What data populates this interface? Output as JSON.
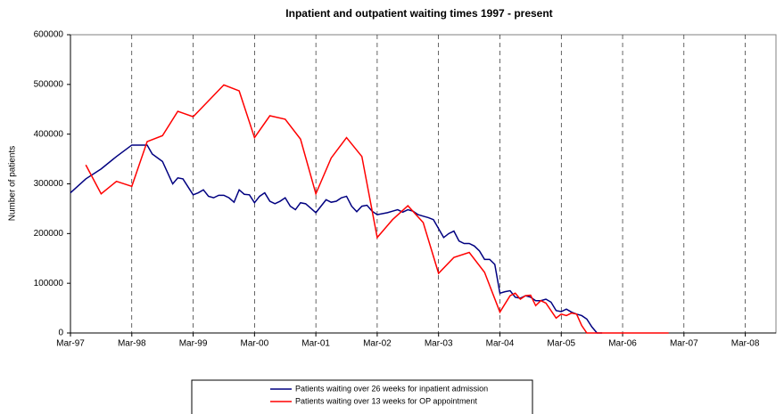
{
  "chart_data": {
    "type": "line",
    "title": "Inpatient and outpatient waiting times 1997 - present",
    "y_label": "Number of patients",
    "xlim": [
      0,
      138
    ],
    "xticks": [
      {
        "value": 0,
        "label": "Mar-97"
      },
      {
        "value": 12,
        "label": "Mar-98"
      },
      {
        "value": 24,
        "label": "Mar-99"
      },
      {
        "value": 36,
        "label": "Mar-00"
      },
      {
        "value": 48,
        "label": "Mar-01"
      },
      {
        "value": 60,
        "label": "Mar-02"
      },
      {
        "value": 72,
        "label": "Mar-03"
      },
      {
        "value": 84,
        "label": "Mar-04"
      },
      {
        "value": 96,
        "label": "Mar-05"
      },
      {
        "value": 108,
        "label": "Mar-06"
      },
      {
        "value": 120,
        "label": "Mar-07"
      },
      {
        "value": 132,
        "label": "Mar-08"
      }
    ],
    "ylim": [
      0,
      600000
    ],
    "yticks": [
      0,
      100000,
      200000,
      300000,
      400000,
      500000,
      600000
    ],
    "xgrid": true,
    "legend": "bottom",
    "series": [
      {
        "name": "Patients waiting over 26 weeks for inpatient admission",
        "color": "#000080",
        "x": [
          0,
          3,
          6,
          9,
          12,
          15,
          16,
          18,
          20,
          21,
          22,
          24,
          25,
          26,
          27,
          28,
          29,
          30,
          31,
          32,
          33,
          34,
          35,
          36,
          37,
          38,
          39,
          40,
          41,
          42,
          43,
          44,
          45,
          46,
          47,
          48,
          49,
          50,
          51,
          52,
          53,
          54,
          55,
          56,
          57,
          58,
          59,
          60,
          62,
          63,
          64,
          65,
          66,
          67,
          68,
          69,
          70,
          71,
          72,
          73,
          74,
          75,
          76,
          77,
          78,
          79,
          80,
          81,
          82,
          83,
          84,
          85,
          86,
          87,
          88,
          89,
          90,
          91,
          92,
          93,
          94,
          95,
          96,
          97,
          98,
          99,
          100,
          101,
          102,
          103,
          104
        ],
        "values": [
          282000,
          310000,
          330000,
          355000,
          378000,
          378000,
          360000,
          345000,
          300000,
          312000,
          310000,
          278000,
          282000,
          288000,
          275000,
          272000,
          277000,
          277000,
          272000,
          263000,
          288000,
          279000,
          278000,
          262000,
          275000,
          282000,
          265000,
          260000,
          265000,
          272000,
          255000,
          248000,
          262000,
          260000,
          251000,
          242000,
          255000,
          268000,
          263000,
          265000,
          272000,
          275000,
          255000,
          244000,
          255000,
          257000,
          245000,
          238000,
          242000,
          245000,
          248000,
          243000,
          248000,
          245000,
          238000,
          235000,
          232000,
          228000,
          210000,
          192000,
          200000,
          205000,
          185000,
          180000,
          180000,
          175000,
          165000,
          148000,
          148000,
          138000,
          80000,
          83000,
          85000,
          72000,
          70000,
          75000,
          72000,
          65000,
          65000,
          68000,
          62000,
          45000,
          43000,
          48000,
          42000,
          38000,
          35000,
          28000,
          12000,
          0,
          0
        ]
      },
      {
        "name": "Patients waiting over 13 weeks for OP appointment",
        "color": "#ff0000",
        "x": [
          3,
          6,
          9,
          12,
          15,
          18,
          21,
          24,
          27,
          30,
          33,
          36,
          39,
          42,
          45,
          48,
          51,
          54,
          57,
          60,
          63,
          66,
          69,
          72,
          75,
          78,
          81,
          84,
          86,
          87,
          88,
          89,
          90,
          91,
          92,
          93,
          95,
          96,
          97,
          98,
          99,
          100,
          101,
          102,
          105,
          108,
          111,
          114,
          117
        ],
        "values": [
          338000,
          280000,
          305000,
          295000,
          385000,
          397000,
          446000,
          435000,
          467000,
          499000,
          487000,
          393000,
          437000,
          430000,
          390000,
          280000,
          352000,
          393000,
          355000,
          192000,
          228000,
          256000,
          222000,
          120000,
          152000,
          162000,
          122000,
          42000,
          75000,
          80000,
          68000,
          75000,
          76000,
          55000,
          65000,
          60000,
          30000,
          38000,
          35000,
          40000,
          38000,
          15000,
          0,
          0,
          0,
          0,
          0,
          0,
          0
        ]
      }
    ]
  }
}
